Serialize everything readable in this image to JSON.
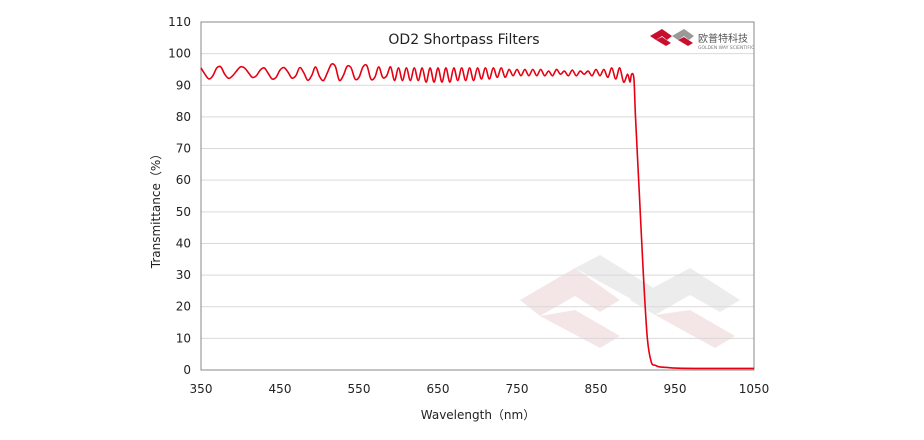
{
  "chart_data": {
    "type": "line",
    "title": "OD2  Shortpass Filters",
    "xlabel": "Wavelength（nm）",
    "ylabel": "Transmittance（%）",
    "xlim": [
      350,
      1050
    ],
    "ylim": [
      0,
      110
    ],
    "xticks": [
      350,
      450,
      550,
      650,
      750,
      850,
      950,
      1050
    ],
    "yticks": [
      0,
      10,
      20,
      30,
      40,
      50,
      60,
      70,
      80,
      90,
      100,
      110
    ],
    "grid": true,
    "legend": "none",
    "series": [
      {
        "color": "#e60012",
        "x": [
          350,
          355,
          360,
          365,
          370,
          375,
          380,
          385,
          390,
          395,
          400,
          405,
          410,
          415,
          420,
          425,
          430,
          435,
          440,
          445,
          450,
          455,
          460,
          465,
          470,
          475,
          480,
          485,
          490,
          495,
          500,
          505,
          510,
          515,
          520,
          525,
          530,
          535,
          540,
          545,
          550,
          555,
          560,
          565,
          570,
          575,
          580,
          585,
          590,
          595,
          600,
          605,
          610,
          615,
          620,
          625,
          630,
          635,
          640,
          645,
          650,
          655,
          660,
          665,
          670,
          675,
          680,
          685,
          690,
          695,
          700,
          705,
          710,
          715,
          720,
          725,
          730,
          735,
          740,
          745,
          750,
          755,
          760,
          765,
          770,
          775,
          780,
          785,
          790,
          795,
          800,
          805,
          810,
          815,
          820,
          825,
          830,
          835,
          840,
          845,
          850,
          855,
          860,
          865,
          870,
          875,
          880,
          885,
          890,
          893,
          895,
          898,
          900,
          905,
          910,
          915,
          920,
          925,
          930,
          940,
          950,
          975,
          1000,
          1025,
          1050
        ],
        "values": [
          95.5,
          93.5,
          92.0,
          93.0,
          95.5,
          95.8,
          93.5,
          92.2,
          93.0,
          94.5,
          95.8,
          95.5,
          94.0,
          92.5,
          93.0,
          94.8,
          95.5,
          93.8,
          92.0,
          92.5,
          94.8,
          95.6,
          94.2,
          92.3,
          93.0,
          95.6,
          94.0,
          91.6,
          93.0,
          95.8,
          92.8,
          91.5,
          94.0,
          96.6,
          96.0,
          91.6,
          93.0,
          96.0,
          95.5,
          92.0,
          92.5,
          95.8,
          96.2,
          92.0,
          92.5,
          95.8,
          92.5,
          93.0,
          95.8,
          91.5,
          95.5,
          91.5,
          95.5,
          91.5,
          95.5,
          91.5,
          95.5,
          91.0,
          95.5,
          91.0,
          95.5,
          91.0,
          95.5,
          91.0,
          95.5,
          91.5,
          95.5,
          91.5,
          95.5,
          91.5,
          95.5,
          92.0,
          95.5,
          92.0,
          95.5,
          92.5,
          95.5,
          92.5,
          95.0,
          93.0,
          95.0,
          93.0,
          95.0,
          93.0,
          95.0,
          93.0,
          95.0,
          93.0,
          94.5,
          93.0,
          95.0,
          93.5,
          94.5,
          93.0,
          94.8,
          93.0,
          94.5,
          93.5,
          94.5,
          93.0,
          95.0,
          93.0,
          95.0,
          92.5,
          95.5,
          92.0,
          95.5,
          91.0,
          93.5,
          91.0,
          93.5,
          92.0,
          80.0,
          55.0,
          30.0,
          10.0,
          2.5,
          1.5,
          1.0,
          0.8,
          0.6,
          0.5,
          0.5,
          0.5,
          0.5
        ]
      }
    ]
  },
  "logo": {
    "name_cn": "欧普特科技",
    "name_en": "GOLDEN WAY SCIENTIFIC",
    "colors": {
      "red": "#c8102e",
      "gray": "#666666"
    }
  },
  "watermark": {
    "colors": [
      "#e8c8c8",
      "#d0d0d0"
    ]
  }
}
